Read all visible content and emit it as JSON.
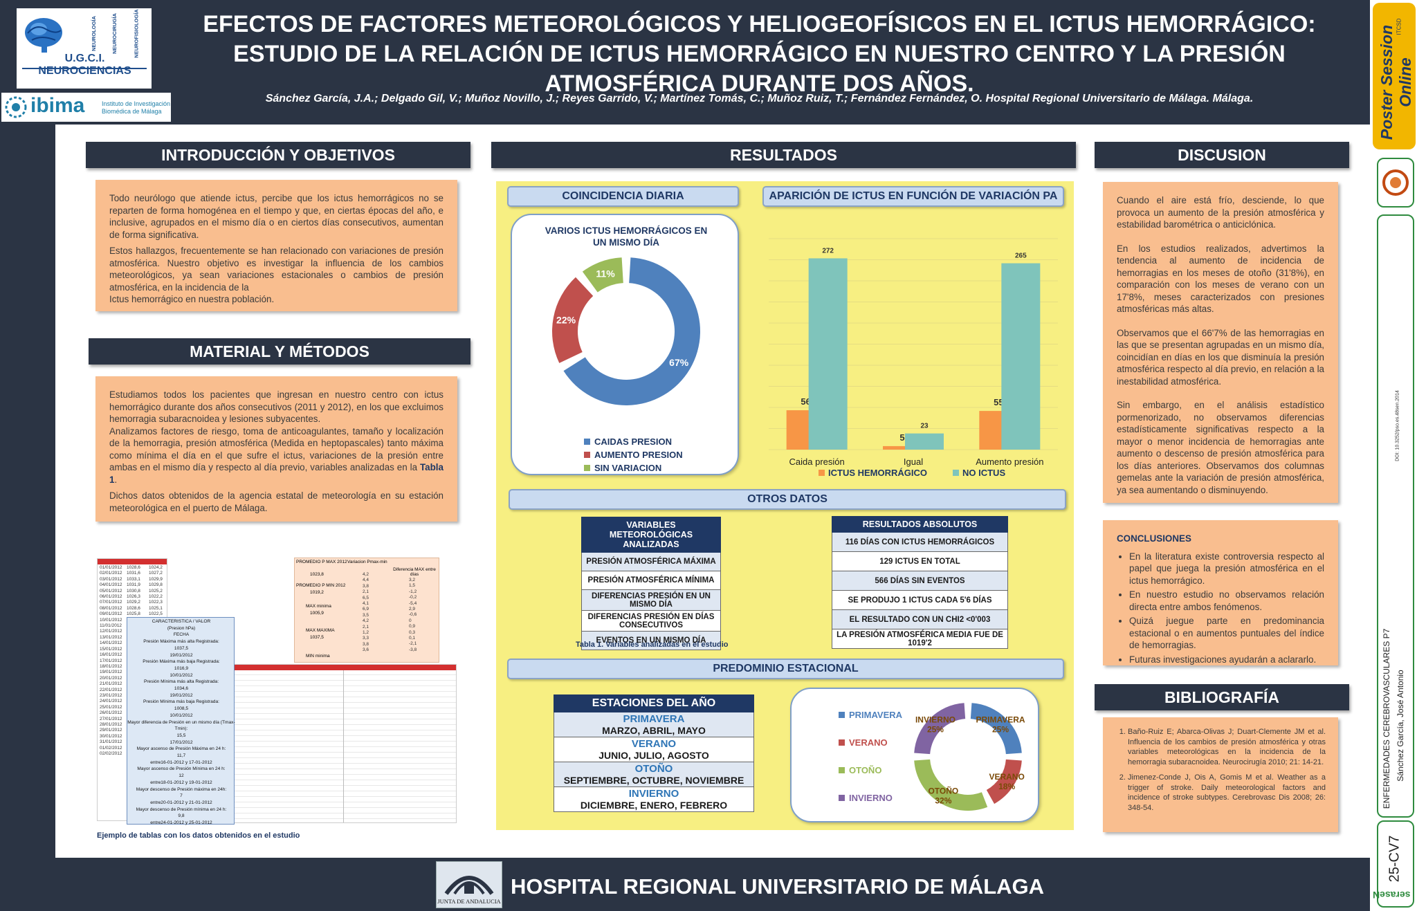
{
  "header": {
    "title": "EFECTOS DE FACTORES METEOROLÓGICOS Y HELIOGEOFÍSICOS EN EL ICTUS HEMORRÁGICO: ESTUDIO DE LA RELACIÓN DE ICTUS HEMORRÁGICO EN NUESTRO CENTRO Y LA PRESIÓN ATMOSFÉRICA DURANTE DOS AÑOS.",
    "authors": "Sánchez García, J.A.;  Delgado Gil, V.; Muñoz Novillo, J.; Reyes Garrido, V.; Martínez Tomás, C.; Muñoz Ruiz, T.; Fernández Fernández, O. Hospital Regional Universitario de Málaga. Málaga.",
    "logo_ugc": "U.G.C.I. NEUROCIENCIAS",
    "logo_ugc_sub": [
      "NEUROLOGÍA",
      "NEUROCIRUGÍA",
      "NEUROFISIOLOGÍA"
    ],
    "logo_ibima": "ibima",
    "logo_ibima_sub": "Instituto de Investigación Biomédica de Málaga"
  },
  "intro": {
    "heading": "INTRODUCCIÓN Y OBJETIVOS",
    "p1": "Todo neurólogo que atiende ictus, percibe que los ictus hemorrágicos no se reparten de forma homogénea en el tiempo y que, en ciertas épocas del año, e inclusive, agrupados en el mismo día o en ciertos días consecutivos, aumentan de forma significativa.",
    "p2": "Estos hallazgos, frecuentemente se han relacionado con variaciones de presión atmosférica. Nuestro objetivo es investigar la influencia de los cambios meteorológicos, ya sean variaciones estacionales o cambios de presión atmosférica, en la incidencia de la",
    "p3": "Ictus hemorrágico en nuestra población."
  },
  "methods": {
    "heading": "MATERIAL Y MÉTODOS",
    "p1": "Estudiamos todos los pacientes que ingresan en nuestro centro con ictus hemorrágico durante dos años consecutivos (2011 y 2012), en los que excluimos hemorragia subaracnoidea y lesiones subyacentes.",
    "p2a": "Analizamos factores de riesgo, toma de anticoagulantes, tamaño y localización de la hemorragia, presión atmosférica (Medida en heptopascales) tanto máxima como mínima el día en el que sufre el ictus, variaciones de la presión entre ambas en el mismo día y respecto al día previo, variables analizadas en la",
    "p2_link": "Tabla 1",
    "p2_end": ".",
    "p3": "Dichos datos obtenidos de la agencia estatal de meteorología en su estación meteorológica en el puerto de Málaga.",
    "caption": "Ejemplo de tablas con los datos obtenidos en el estudio",
    "mini_dates": [
      "01/01/2012",
      "02/01/2012",
      "03/01/2012",
      "04/01/2012",
      "05/01/2012",
      "06/01/2012",
      "07/01/2012",
      "08/01/2012",
      "09/01/2012",
      "10/01/2012",
      "11/01/2012",
      "12/01/2012",
      "13/01/2012",
      "14/01/2012",
      "15/01/2012",
      "16/01/2012",
      "17/01/2012",
      "18/01/2012",
      "19/01/2012",
      "20/01/2012",
      "21/01/2012",
      "22/01/2012",
      "23/01/2012",
      "24/01/2012",
      "25/01/2012",
      "26/01/2012",
      "27/01/2012",
      "28/01/2012",
      "29/01/2012",
      "30/01/2012",
      "31/01/2012",
      "01/02/2012",
      "02/02/2012"
    ],
    "mini_col2": [
      "1028,6",
      "1031,6",
      "1033,1",
      "1031,9",
      "1030,8",
      "1026,3",
      "1029,2",
      "1028,6",
      "1025,8"
    ],
    "mini_col3": [
      "1024,2",
      "1027,2",
      "1029,9",
      "1029,8",
      "1025,2",
      "1022,2",
      "1022,3",
      "1025,1",
      "1022,5"
    ],
    "card_lines": [
      "CARACTERISTICA / VALOR",
      "(Presion hPa)",
      "FECHA",
      "Presión Máxima más alta Registrada:",
      "1037,5",
      "19/01/2012",
      "Presión Máxima más baja Registrada:",
      "1016,9",
      "10/01/2012",
      "Presión Mínima más alta Registrada:",
      "1034,6",
      "19/01/2012",
      "Presión Mínima más baja Registrada:",
      "1008,5",
      "10/01/2012",
      "Mayor diferencia de Presión en un mismo día (Tmax-Tmin):",
      "15,5",
      "17/01/2012",
      "Mayor ascenso de Presión Máxima en 24 h:",
      "11,7",
      "entre16-01-2012 y 17-01-2012",
      "Mayor ascenso de Presión Mínima en 24 h:",
      "12",
      "entre18-01-2012 y 19-01-2012",
      "Mayor descenso de Presión máxima en 24h:",
      "7",
      "entre20-01-2012 y 21-01-2012",
      "Mayor descenso de Presión mínima en 24 h:",
      "9,8",
      "entre24-01-2012 y 25-01-2012"
    ],
    "stats_labels": [
      "PROMEDIO P MAX 2012",
      "Variacion Pmax-min",
      "Diferencia MAX entre días",
      "1023,8",
      "PROMEDIO P MIN 2012",
      "1019,2",
      "MAX minima",
      "1005,9",
      "MAX MAXIMA",
      "1037,5",
      "MIN minima"
    ],
    "stats_values": [
      "4,2",
      "4,4",
      "3,8",
      "2,1",
      "6,5",
      "4,1",
      "6,9",
      "3,5",
      "4,2",
      "2,1",
      "1,2",
      "3,3",
      "3,8",
      "3,6"
    ],
    "stats_diff": [
      "3,2",
      "1,5",
      "-1,2",
      "-0,2",
      "-5,4",
      "2,9",
      "-0,6",
      "0",
      "0,9",
      "0,3",
      "0,1",
      "-2,1",
      "-3,8"
    ]
  },
  "results": {
    "heading": "RESULTADOS",
    "coincidencia": "COINCIDENCIA DIARIA",
    "aparicion": "APARICIÓN DE ICTUS EN FUNCIÓN DE VARIACIÓN PA",
    "otros": "OTROS DATOS",
    "predominio": "PREDOMINIO ESTACIONAL",
    "table1_caption": "Tabla 1. Variables analizadas en el estudio",
    "variables_header": "VARIABLES METEOROLÓGICAS ANALIZADAS",
    "variables": [
      "PRESIÓN ATMOSFÉRICA MÁXIMA",
      "PRESIÓN ATMOSFÉRICA MÍNIMA",
      "DIFERENCIAS PRESIÓN EN UN MISMO DÍA",
      "DIFERENCIAS PRESIÓN EN DÍAS CONSECUTIVOS",
      "EVENTOS EN UN MISMO DÍA"
    ],
    "absolutos_header": "RESULTADOS ABSOLUTOS",
    "absolutos": [
      "116 DÍAS CON ICTUS HEMORRÁGICOS",
      "129 ICTUS EN TOTAL",
      "566 DÍAS SIN EVENTOS",
      "SE PRODUJO 1 ICTUS CADA 5'6 DÍAS",
      "EL RESULTADO CON UN CHI2 <0'003",
      "LA PRESIÓN ATMOSFÉRICA MEDIA FUE DE 1019'2"
    ],
    "estaciones_header": "ESTACIONES DEL AÑO",
    "estaciones": [
      {
        "name": "PRIMAVERA",
        "months": "MARZO, ABRIL, MAYO"
      },
      {
        "name": "VERANO",
        "months": "JUNIO, JULIO, AGOSTO"
      },
      {
        "name": "OTOÑO",
        "months": "SEPTIEMBRE, OCTUBRE, NOVIEMBRE"
      },
      {
        "name": "INVIERNO",
        "months": "DICIEMBRE, ENERO, FEBRERO"
      }
    ]
  },
  "chart_data": [
    {
      "type": "pie",
      "title": "VARIOS ICTUS HEMORRÁGICOS EN UN MISMO DÍA",
      "categories": [
        "CAIDAS PRESION",
        "AUMENTO PRESION",
        "SIN VARIACION"
      ],
      "values": [
        67,
        22,
        11
      ],
      "labels": [
        "67%",
        "22%",
        "11%"
      ],
      "colors": [
        "#4f81bd",
        "#c0504d",
        "#9bbb59"
      ]
    },
    {
      "type": "bar",
      "title": "APARICIÓN DE ICTUS EN FUNCIÓN DE VARIACIÓN PA",
      "categories": [
        "Caida presión",
        "Igual",
        "Aumento presión"
      ],
      "series": [
        {
          "name": "ICTUS HEMORRÁGICO",
          "values": [
            56,
            5,
            55
          ],
          "color": "#f79646"
        },
        {
          "name": "NO ICTUS",
          "values": [
            272,
            23,
            265
          ],
          "color": "#7fc4bb"
        }
      ],
      "ylim": [
        0,
        300
      ]
    },
    {
      "type": "pie",
      "title": "PREDOMINIO ESTACIONAL",
      "categories": [
        "PRIMAVERA",
        "VERANO",
        "OTOÑO",
        "INVIERNO"
      ],
      "values": [
        25,
        18,
        32,
        25
      ],
      "labels": [
        "PRIMAVERA 25%",
        "VERANO 18%",
        "OTOÑO 32%",
        "INVIERNO 25%"
      ],
      "colors": [
        "#4f81bd",
        "#c0504d",
        "#9bbb59",
        "#8064a2"
      ]
    }
  ],
  "discussion": {
    "heading": "DISCUSION",
    "paragraphs": [
      "Cuando el aire está frío, desciende, lo que provoca un aumento de la presión atmosférica y estabilidad barométrica o anticiclónica.",
      "En los estudios realizados, advertimos la tendencia al aumento de incidencia de hemorragias en los meses de otoño (31'8%), en comparación con los meses de verano con un 17'8%, meses caracterizados con presiones atmosféricas más altas.",
      "Observamos que el 66'7% de las hemorragias en las que se presentan agrupadas en un mismo día, coincidían en días en los que disminuía la presión atmosférica respecto al día previo, en relación a la inestabilidad atmosférica.",
      "Sin embargo, en el análisis estadístico pormenorizado, no observamos diferencias estadísticamente significativas respecto a la mayor o menor incidencia de hemorragias ante aumento o descenso de presión atmosférica para los días anteriores. Observamos dos columnas gemelas ante la variación de presión atmosférica, ya sea aumentando o disminuyendo."
    ],
    "conclusiones_title": "CONCLUSIONES",
    "conclusiones": [
      "En la literatura existe controversia respecto al papel que juega la presión atmosférica en el ictus hemorrágico.",
      "En nuestro estudio no observamos relación directa entre ambos fenómenos.",
      "Quizá juegue parte en predominancia estacional o en aumentos puntuales del índice de hemorragias.",
      "Futuras investigaciones ayudarán a aclararlo."
    ]
  },
  "bibliography": {
    "heading": "BIBLIOGRAFÍA",
    "items": [
      "Baño-Ruiz E; Abarca-Olivas J; Duart-Clemente JM et al. Influencia de los cambios de presión atmosférica y otras variables meteorológicas en la incidencia de la hemorragia subaracnoidea. Neurocirugía 2010; 21: 14-21.",
      "Jimenez-Conde J, Ois A, Gomis M et al. Weather as a trigger of stroke. Daily meteorological factors and incidence of stroke subtypes. Cerebrovasc Dis 2008; 26: 348-54."
    ]
  },
  "footer": {
    "hospital": "HOSPITAL REGIONAL UNIVERSITARIO DE MÁLAGA",
    "junta": "JUNTA DE ANDALUCIA"
  },
  "sidebar": {
    "brand": "Poster Session Online",
    "brand_sub": "ITCSD",
    "doi": "DOI: 10.3252/pso.es.48sen.2014",
    "category": "ENFERMEDADES CEREBROVASCULARES P7",
    "author": "Sánchez García, José Antonio",
    "code": "25-CV7",
    "sen": "seraseN"
  }
}
